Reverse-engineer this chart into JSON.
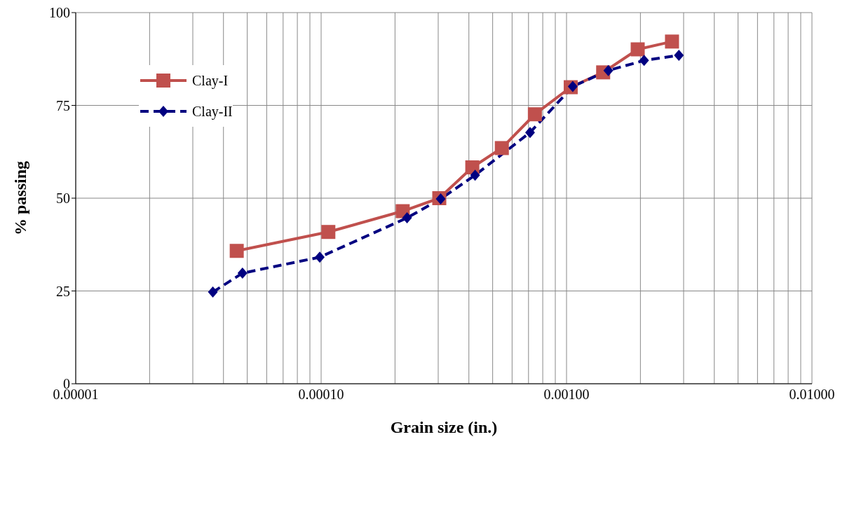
{
  "chart_data": {
    "type": "line",
    "xlabel": "Grain size (in.)",
    "ylabel": "% passing",
    "log": "x",
    "grid": true,
    "legend": "top left",
    "xlim": [
      1e-05,
      0.01
    ],
    "xticks": [
      {
        "value": 1e-05,
        "label": "0.00001"
      },
      {
        "value": 2e-05,
        "label": null
      },
      {
        "value": 3e-05,
        "label": null
      },
      {
        "value": 4e-05,
        "label": null
      },
      {
        "value": 5e-05,
        "label": null
      },
      {
        "value": 6e-05,
        "label": null
      },
      {
        "value": 7e-05,
        "label": null
      },
      {
        "value": 8e-05,
        "label": null
      },
      {
        "value": 9e-05,
        "label": null
      },
      {
        "value": 0.0001,
        "label": "0.00010"
      },
      {
        "value": 0.0002,
        "label": null
      },
      {
        "value": 0.0003,
        "label": null
      },
      {
        "value": 0.0004,
        "label": null
      },
      {
        "value": 0.0005,
        "label": null
      },
      {
        "value": 0.0006,
        "label": null
      },
      {
        "value": 0.0007,
        "label": null
      },
      {
        "value": 0.0008,
        "label": null
      },
      {
        "value": 0.0009,
        "label": null
      },
      {
        "value": 0.001,
        "label": "0.00100"
      },
      {
        "value": 0.002,
        "label": null
      },
      {
        "value": 0.003,
        "label": null
      },
      {
        "value": 0.004,
        "label": null
      },
      {
        "value": 0.005,
        "label": null
      },
      {
        "value": 0.006,
        "label": null
      },
      {
        "value": 0.007,
        "label": null
      },
      {
        "value": 0.008,
        "label": null
      },
      {
        "value": 0.009,
        "label": null
      },
      {
        "value": 0.01,
        "label": "0.01000"
      }
    ],
    "ylim": [
      0,
      100
    ],
    "yticks": [
      0,
      25,
      50,
      75,
      100
    ],
    "series": [
      {
        "name": "Clay-I",
        "color": "#c0504d",
        "marker": "square",
        "line_style": "solid",
        "x": [
          4.53e-05,
          0.000107,
          0.000215,
          0.000303,
          0.000413,
          0.000545,
          0.000743,
          0.00104,
          0.00141,
          0.00195,
          0.00269
        ],
        "values": [
          35.8,
          40.9,
          46.5,
          50.0,
          58.3,
          63.5,
          72.6,
          79.9,
          83.9,
          90.1,
          92.2
        ]
      },
      {
        "name": "Clay-II",
        "color": "#000080",
        "marker": "diamond",
        "line_style": "dashed",
        "x": [
          3.62e-05,
          4.78e-05,
          9.87e-05,
          0.000224,
          0.000307,
          0.000424,
          0.00071,
          0.00106,
          0.00148,
          0.00207,
          0.00287
        ],
        "values": [
          24.7,
          29.8,
          34.1,
          44.7,
          49.8,
          56.2,
          67.7,
          80.1,
          84.4,
          87.1,
          88.5
        ]
      }
    ]
  }
}
